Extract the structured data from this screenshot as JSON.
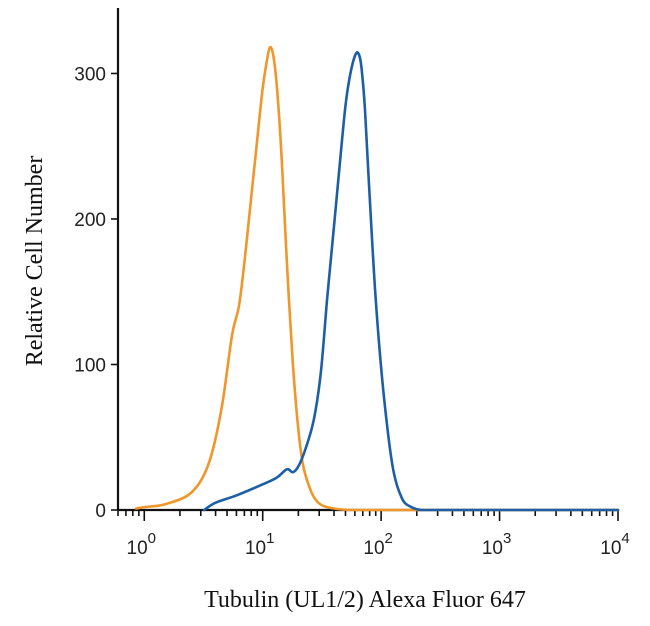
{
  "chart_data": {
    "type": "line",
    "title": "",
    "xlabel": "Tubulin (UL1/2) Alexa Fluor 647",
    "ylabel": "Relative Cell Number",
    "xscale": "log",
    "xlim": [
      0.6,
      10000
    ],
    "ylim": [
      0,
      345
    ],
    "grid": false,
    "legend": "none",
    "y_ticks": [
      {
        "value": 0,
        "label": "0"
      },
      {
        "value": 100,
        "label": "100"
      },
      {
        "value": 200,
        "label": "200"
      },
      {
        "value": 300,
        "label": "300"
      }
    ],
    "x_ticks": [
      {
        "value": 1,
        "base": "10",
        "exp": "0"
      },
      {
        "value": 10,
        "base": "10",
        "exp": "1"
      },
      {
        "value": 100,
        "base": "10",
        "exp": "2"
      },
      {
        "value": 1000,
        "base": "10",
        "exp": "3"
      },
      {
        "value": 10000,
        "base": "10",
        "exp": "4"
      }
    ],
    "series": [
      {
        "color": "#f0962a",
        "x": [
          0.85,
          1.0,
          1.5,
          2.5,
          3.5,
          4.5,
          5.5,
          6.3,
          7.0,
          8.0,
          9.0,
          10.0,
          10.8,
          11.5,
          12.3,
          13.2,
          14.5,
          16.0,
          18.0,
          20.0,
          22.0,
          25.0,
          28.0,
          32.0,
          40.0,
          60.0,
          200.0,
          10000.0
        ],
        "y": [
          1,
          2,
          4,
          12,
          32,
          70,
          120,
          140,
          170,
          215,
          255,
          290,
          308,
          318,
          312,
          290,
          240,
          170,
          100,
          55,
          30,
          15,
          7,
          3,
          1,
          0,
          0,
          0
        ]
      },
      {
        "color": "#1d5fa6",
        "x": [
          3.2,
          4.0,
          6.0,
          9.0,
          13.0,
          16.0,
          18.0,
          20.0,
          23.0,
          27.0,
          31.0,
          35.0,
          40.0,
          45.0,
          50.0,
          55.0,
          60.0,
          64.0,
          68.0,
          73.0,
          80.0,
          90.0,
          105.0,
          125.0,
          150.0,
          180.0,
          220.0,
          300.0,
          10000.0
        ],
        "y": [
          0,
          5,
          10,
          16,
          22,
          28,
          26,
          30,
          42,
          62,
          95,
          145,
          195,
          240,
          278,
          300,
          312,
          314,
          305,
          275,
          215,
          145,
          80,
          30,
          8,
          2,
          0,
          0,
          0
        ]
      }
    ]
  }
}
